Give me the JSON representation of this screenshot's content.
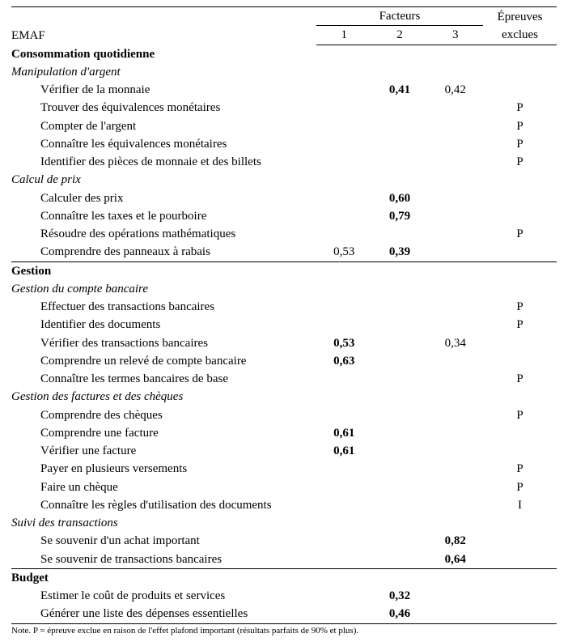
{
  "header": {
    "emaf": "EMAF",
    "facteurs": "Facteurs",
    "epreuves": "Épreuves",
    "exclues": "exclues",
    "f1": "1",
    "f2": "2",
    "f3": "3"
  },
  "sections": [
    {
      "type": "section",
      "label": "Consommation quotidienne"
    },
    {
      "type": "sub",
      "label": "Manipulation d'argent"
    },
    {
      "type": "row",
      "label": "Vérifier de la monnaie",
      "f1": "",
      "f2": "0,41",
      "f2b": true,
      "f3": "0,42",
      "ep": ""
    },
    {
      "type": "row",
      "label": "Trouver des équivalences monétaires",
      "f1": "",
      "f2": "",
      "f3": "",
      "ep": "P"
    },
    {
      "type": "row",
      "label": "Compter de l'argent",
      "f1": "",
      "f2": "",
      "f3": "",
      "ep": "P"
    },
    {
      "type": "row",
      "label": "Connaître les équivalences monétaires",
      "f1": "",
      "f2": "",
      "f3": "",
      "ep": "P"
    },
    {
      "type": "row",
      "label": "Identifier des pièces de monnaie et des billets",
      "f1": "",
      "f2": "",
      "f3": "",
      "ep": "P"
    },
    {
      "type": "sub",
      "label": "Calcul de prix"
    },
    {
      "type": "row",
      "label": "Calculer des prix",
      "f1": "",
      "f2": "0,60",
      "f2b": true,
      "f3": "",
      "ep": ""
    },
    {
      "type": "row",
      "label": "Connaître les taxes et le pourboire",
      "f1": "",
      "f2": "0,79",
      "f2b": true,
      "f3": "",
      "ep": ""
    },
    {
      "type": "row",
      "label": "Résoudre des opérations mathématiques",
      "f1": "",
      "f2": "",
      "f3": "",
      "ep": "P"
    },
    {
      "type": "row",
      "label": "Comprendre des panneaux à rabais",
      "f1": "0,53",
      "f2": "0,39",
      "f2b": true,
      "f3": "",
      "ep": "",
      "rule": "bot"
    },
    {
      "type": "section",
      "label": "Gestion"
    },
    {
      "type": "sub",
      "label": "Gestion du compte bancaire"
    },
    {
      "type": "row",
      "label": "Effectuer des transactions bancaires",
      "f1": "",
      "f2": "",
      "f3": "",
      "ep": "P"
    },
    {
      "type": "row",
      "label": "Identifier des documents",
      "f1": "",
      "f2": "",
      "f3": "",
      "ep": "P"
    },
    {
      "type": "row",
      "label": "Vérifier des transactions bancaires",
      "f1": "0,53",
      "f1b": true,
      "f2": "",
      "f3": "0,34",
      "ep": ""
    },
    {
      "type": "row",
      "label": "Comprendre un relevé de compte bancaire",
      "f1": "0,63",
      "f1b": true,
      "f2": "",
      "f3": "",
      "ep": ""
    },
    {
      "type": "row",
      "label": "Connaître les termes bancaires de base",
      "f1": "",
      "f2": "",
      "f3": "",
      "ep": "P"
    },
    {
      "type": "sub",
      "label": "Gestion des factures et des chèques"
    },
    {
      "type": "row",
      "label": "Comprendre des chèques",
      "f1": "",
      "f2": "",
      "f3": "",
      "ep": "P"
    },
    {
      "type": "row",
      "label": "Comprendre une facture",
      "f1": "0,61",
      "f1b": true,
      "f2": "",
      "f3": "",
      "ep": ""
    },
    {
      "type": "row",
      "label": "Vérifier une facture",
      "f1": "0,61",
      "f1b": true,
      "f2": "",
      "f3": "",
      "ep": ""
    },
    {
      "type": "row",
      "label": "Payer en plusieurs versements",
      "f1": "",
      "f2": "",
      "f3": "",
      "ep": "P"
    },
    {
      "type": "row",
      "label": "Faire un chèque",
      "f1": "",
      "f2": "",
      "f3": "",
      "ep": "P"
    },
    {
      "type": "row",
      "label": "Connaître les règles d'utilisation des documents",
      "f1": "",
      "f2": "",
      "f3": "",
      "ep": "I"
    },
    {
      "type": "sub",
      "label": "Suivi des transactions"
    },
    {
      "type": "row",
      "label": "Se souvenir d'un achat important",
      "f1": "",
      "f2": "",
      "f3": "0,82",
      "f3b": true,
      "ep": ""
    },
    {
      "type": "row",
      "label": "Se souvenir de transactions bancaires",
      "f1": "",
      "f2": "",
      "f3": "0,64",
      "f3b": true,
      "ep": "",
      "rule": "bot"
    },
    {
      "type": "section",
      "label": "Budget"
    },
    {
      "type": "row",
      "label": "Estimer le coût de produits et services",
      "f1": "",
      "f2": "0,32",
      "f2b": true,
      "f3": "",
      "ep": ""
    },
    {
      "type": "row",
      "label": "Générer une liste des dépenses essentielles",
      "f1": "",
      "f2": "0,46",
      "f2b": true,
      "f3": "",
      "ep": "",
      "rule": "bot"
    }
  ],
  "footnote": "Note. P = épreuve exclue en raison de l'effet plafond important (résultats parfaits de 90% et plus)."
}
